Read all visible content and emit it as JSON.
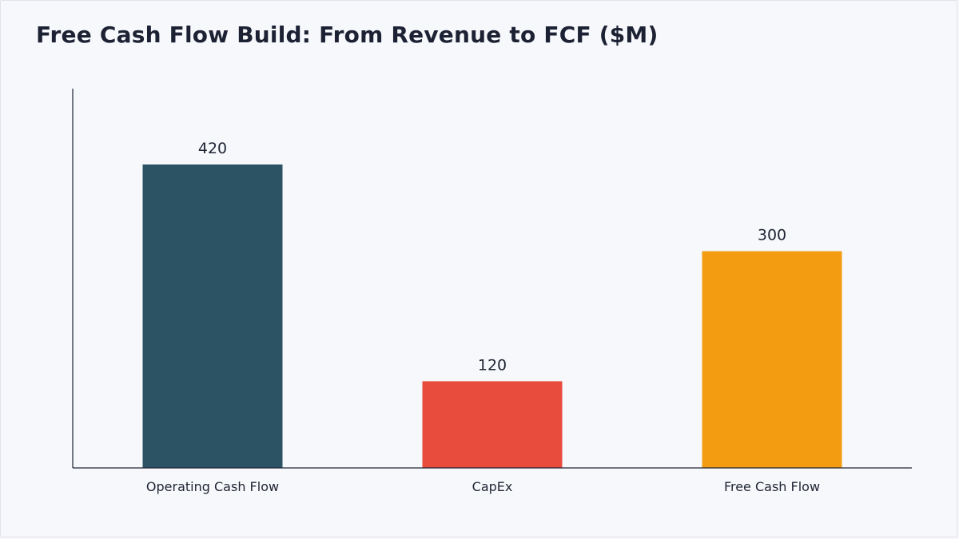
{
  "chart_data": {
    "type": "bar",
    "title": "Free Cash Flow Build: From Revenue to FCF ($M)",
    "xlabel": "",
    "ylabel": "",
    "categories": [
      "Operating Cash Flow",
      "CapEx",
      "Free Cash Flow"
    ],
    "values": [
      420,
      120,
      300
    ],
    "value_labels": [
      "420",
      "120",
      "300"
    ],
    "colors": [
      "#2c5364",
      "#e74c3c",
      "#f39c12"
    ],
    "ylim": [
      0,
      525
    ],
    "grid": false,
    "legend": "none"
  }
}
